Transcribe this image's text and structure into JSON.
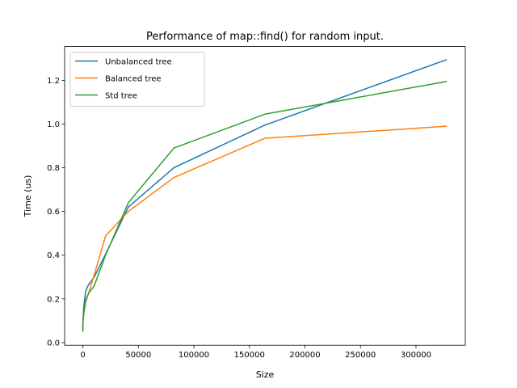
{
  "chart_data": {
    "type": "line",
    "title": "Performance of map::find() for random input.",
    "xlabel": "Size",
    "ylabel": "Time (us)",
    "xlim": [
      -16400,
      344400
    ],
    "ylim": [
      -0.0123,
      1.3545
    ],
    "xticks": [
      0,
      50000,
      100000,
      150000,
      200000,
      250000,
      300000
    ],
    "yticks": [
      0.0,
      0.2,
      0.4,
      0.6,
      0.8,
      1.0,
      1.2
    ],
    "ytick_labels": [
      "0.0",
      "0.2",
      "0.4",
      "0.6",
      "0.8",
      "1.0",
      "1.2"
    ],
    "grid": false,
    "legend_position": "upper-left",
    "x": [
      10,
      20,
      40,
      80,
      160,
      320,
      640,
      1280,
      2560,
      5120,
      10240,
      20480,
      40960,
      81920,
      163840,
      327680
    ],
    "series": [
      {
        "name": "Unbalanced tree",
        "color": "#1f77b4",
        "values": [
          0.065,
          0.07,
          0.08,
          0.09,
          0.1,
          0.12,
          0.15,
          0.185,
          0.235,
          0.265,
          0.3,
          0.405,
          0.62,
          0.8,
          0.995,
          1.295
        ]
      },
      {
        "name": "Balanced tree",
        "color": "#ff7f0e",
        "values": [
          0.06,
          0.065,
          0.075,
          0.085,
          0.095,
          0.11,
          0.125,
          0.145,
          0.185,
          0.225,
          0.31,
          0.488,
          0.6,
          0.755,
          0.935,
          0.99
        ]
      },
      {
        "name": "Std tree",
        "color": "#2ca02c",
        "values": [
          0.05,
          0.055,
          0.065,
          0.075,
          0.09,
          0.105,
          0.125,
          0.15,
          0.195,
          0.225,
          0.26,
          0.4,
          0.64,
          0.89,
          1.045,
          1.195
        ]
      }
    ]
  }
}
